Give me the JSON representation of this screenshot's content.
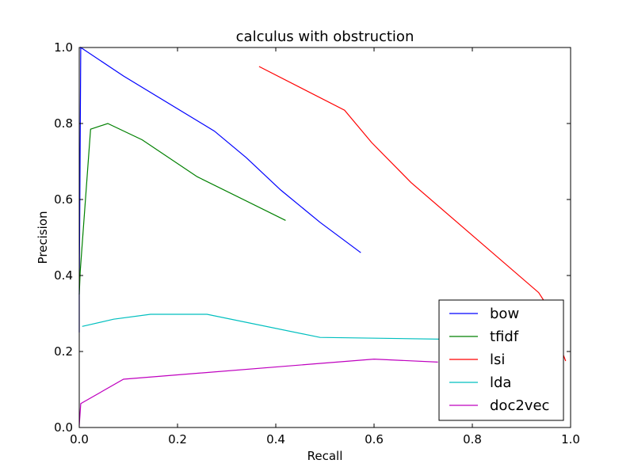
{
  "chart_data": {
    "type": "line",
    "title": "calculus with obstruction",
    "xlabel": "Recall",
    "ylabel": "Precision",
    "xlim": [
      0.0,
      1.0
    ],
    "ylim": [
      0.0,
      1.0
    ],
    "xticks": [
      "0.0",
      "0.2",
      "0.4",
      "0.6",
      "0.8",
      "1.0"
    ],
    "yticks": [
      "0.0",
      "0.2",
      "0.4",
      "0.6",
      "0.8",
      "1.0"
    ],
    "grid": false,
    "legend_position": "bottom-right",
    "series": [
      {
        "name": "bow",
        "color": "#0000ff",
        "x": [
          0.0,
          0.0,
          0.003,
          0.09,
          0.275,
          0.34,
          0.41,
          0.49,
          0.573
        ],
        "y": [
          0.25,
          0.35,
          1.0,
          0.925,
          0.78,
          0.71,
          0.625,
          0.54,
          0.46
        ]
      },
      {
        "name": "tfidf",
        "color": "#008000",
        "x": [
          0.0,
          0.002,
          0.023,
          0.058,
          0.128,
          0.24,
          0.42
        ],
        "y": [
          0.35,
          0.41,
          0.785,
          0.8,
          0.757,
          0.66,
          0.545
        ]
      },
      {
        "name": "lsi",
        "color": "#ff0000",
        "x": [
          0.366,
          0.54,
          0.595,
          0.675,
          0.935,
          0.945,
          0.975,
          0.99
        ],
        "y": [
          0.95,
          0.835,
          0.75,
          0.645,
          0.355,
          0.335,
          0.225,
          0.175
        ]
      },
      {
        "name": "lda",
        "color": "#00bfbf",
        "x": [
          0.006,
          0.07,
          0.145,
          0.26,
          0.49,
          0.76
        ],
        "y": [
          0.266,
          0.285,
          0.298,
          0.298,
          0.237,
          0.232
        ]
      },
      {
        "name": "doc2vec",
        "color": "#bf00bf",
        "x": [
          0.0,
          0.003,
          0.09,
          0.6,
          0.73
        ],
        "y": [
          0.005,
          0.063,
          0.127,
          0.18,
          0.172
        ]
      }
    ]
  }
}
